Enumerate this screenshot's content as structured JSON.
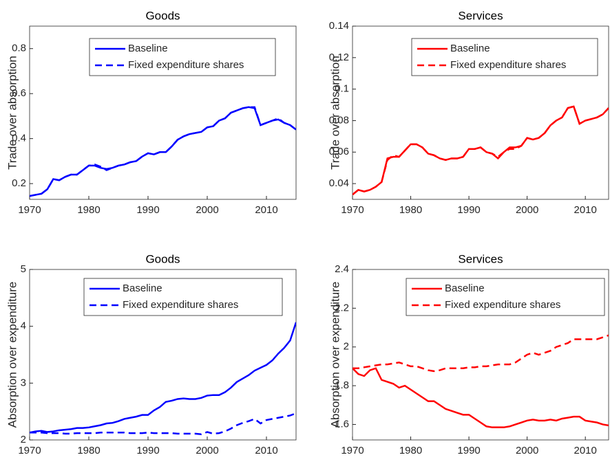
{
  "chart_data": [
    {
      "type": "line",
      "title": "Goods",
      "ylabel": "Trade over absorption",
      "x": [
        1970,
        1971,
        1972,
        1973,
        1974,
        1975,
        1976,
        1977,
        1978,
        1979,
        1980,
        1981,
        1982,
        1983,
        1984,
        1985,
        1986,
        1987,
        1988,
        1989,
        1990,
        1991,
        1992,
        1993,
        1994,
        1995,
        1996,
        1997,
        1998,
        1999,
        2000,
        2001,
        2002,
        2003,
        2004,
        2005,
        2006,
        2007,
        2008,
        2009,
        2010,
        2011,
        2012,
        2013,
        2014,
        2015
      ],
      "xlim": [
        1970,
        2015
      ],
      "xticks": [
        1970,
        1980,
        1990,
        2000,
        2010
      ],
      "ylim": [
        0.13,
        0.9
      ],
      "yticks": [
        0.2,
        0.4,
        0.6,
        0.8
      ],
      "legend": "top",
      "series": [
        {
          "name": "Baseline",
          "color": "#0000ff",
          "style": "solid",
          "values": [
            0.145,
            0.15,
            0.155,
            0.175,
            0.22,
            0.215,
            0.23,
            0.24,
            0.24,
            0.26,
            0.28,
            0.28,
            0.27,
            0.265,
            0.27,
            0.28,
            0.285,
            0.295,
            0.3,
            0.32,
            0.335,
            0.33,
            0.34,
            0.34,
            0.365,
            0.395,
            0.41,
            0.42,
            0.425,
            0.43,
            0.45,
            0.455,
            0.48,
            0.49,
            0.515,
            0.525,
            0.535,
            0.54,
            0.535,
            0.46,
            0.47,
            0.48,
            0.485,
            0.47,
            0.46,
            0.44
          ]
        },
        {
          "name": "Fixed expenditure shares",
          "color": "#0000ff",
          "style": "dashed",
          "values": [
            0.145,
            0.15,
            0.155,
            0.175,
            0.22,
            0.215,
            0.23,
            0.24,
            0.24,
            0.26,
            0.28,
            0.285,
            0.275,
            0.26,
            0.27,
            0.28,
            0.285,
            0.295,
            0.3,
            0.32,
            0.335,
            0.33,
            0.34,
            0.34,
            0.365,
            0.395,
            0.41,
            0.42,
            0.425,
            0.43,
            0.45,
            0.455,
            0.48,
            0.49,
            0.515,
            0.525,
            0.535,
            0.54,
            0.54,
            0.46,
            0.47,
            0.48,
            0.49,
            0.47,
            0.46,
            0.44
          ]
        }
      ]
    },
    {
      "type": "line",
      "title": "Services",
      "ylabel": "Trade over absorption",
      "x": [
        1970,
        1971,
        1972,
        1973,
        1974,
        1975,
        1976,
        1977,
        1978,
        1979,
        1980,
        1981,
        1982,
        1983,
        1984,
        1985,
        1986,
        1987,
        1988,
        1989,
        1990,
        1991,
        1992,
        1993,
        1994,
        1995,
        1996,
        1997,
        1998,
        1999,
        2000,
        2001,
        2002,
        2003,
        2004,
        2005,
        2006,
        2007,
        2008,
        2009,
        2010,
        2011,
        2012,
        2013,
        2014
      ],
      "xlim": [
        1970,
        2014
      ],
      "xticks": [
        1970,
        1980,
        1990,
        2000,
        2010
      ],
      "ylim": [
        0.03,
        0.14
      ],
      "yticks": [
        0.04,
        0.06,
        0.08,
        0.1,
        0.12,
        0.14
      ],
      "legend": "top",
      "series": [
        {
          "name": "Baseline",
          "color": "#ff0000",
          "style": "solid",
          "values": [
            0.033,
            0.036,
            0.035,
            0.036,
            0.038,
            0.041,
            0.056,
            0.057,
            0.057,
            0.061,
            0.065,
            0.065,
            0.063,
            0.059,
            0.058,
            0.056,
            0.055,
            0.056,
            0.056,
            0.057,
            0.062,
            0.062,
            0.063,
            0.06,
            0.059,
            0.056,
            0.06,
            0.063,
            0.063,
            0.064,
            0.069,
            0.068,
            0.069,
            0.072,
            0.077,
            0.08,
            0.082,
            0.088,
            0.089,
            0.078,
            0.08,
            0.081,
            0.082,
            0.084,
            0.088
          ]
        },
        {
          "name": "Fixed expenditure shares",
          "color": "#ff0000",
          "style": "dashed",
          "values": [
            0.033,
            0.036,
            0.035,
            0.036,
            0.038,
            0.041,
            0.055,
            0.058,
            0.057,
            0.061,
            0.065,
            0.065,
            0.063,
            0.059,
            0.058,
            0.056,
            0.055,
            0.056,
            0.056,
            0.057,
            0.062,
            0.062,
            0.063,
            0.06,
            0.059,
            0.057,
            0.06,
            0.062,
            0.062,
            0.064,
            0.069,
            0.068,
            0.069,
            0.072,
            0.077,
            0.08,
            0.082,
            0.088,
            0.089,
            0.078,
            0.08,
            0.081,
            0.082,
            0.084,
            0.088
          ]
        }
      ]
    },
    {
      "type": "line",
      "title": "Goods",
      "ylabel": "Absorption over expenditure",
      "x": [
        1970,
        1971,
        1972,
        1973,
        1974,
        1975,
        1976,
        1977,
        1978,
        1979,
        1980,
        1981,
        1982,
        1983,
        1984,
        1985,
        1986,
        1987,
        1988,
        1989,
        1990,
        1991,
        1992,
        1993,
        1994,
        1995,
        1996,
        1997,
        1998,
        1999,
        2000,
        2001,
        2002,
        2003,
        2004,
        2005,
        2006,
        2007,
        2008,
        2009,
        2010,
        2011,
        2012,
        2013,
        2014,
        2015
      ],
      "xlim": [
        1970,
        2015
      ],
      "xticks": [
        1970,
        1980,
        1990,
        2000,
        2010
      ],
      "ylim": [
        2,
        5
      ],
      "yticks": [
        2,
        3,
        4,
        5
      ],
      "legend": "top",
      "series": [
        {
          "name": "Baseline",
          "color": "#0000ff",
          "style": "solid",
          "values": [
            2.13,
            2.15,
            2.16,
            2.14,
            2.15,
            2.17,
            2.18,
            2.19,
            2.21,
            2.21,
            2.22,
            2.24,
            2.26,
            2.29,
            2.3,
            2.33,
            2.37,
            2.39,
            2.41,
            2.44,
            2.44,
            2.52,
            2.58,
            2.67,
            2.69,
            2.72,
            2.73,
            2.72,
            2.72,
            2.74,
            2.78,
            2.79,
            2.79,
            2.84,
            2.92,
            3.02,
            3.08,
            3.14,
            3.22,
            3.27,
            3.32,
            3.4,
            3.52,
            3.62,
            3.75,
            4.07
          ]
        },
        {
          "name": "Fixed expenditure shares",
          "color": "#0000ff",
          "style": "dashed",
          "values": [
            2.13,
            2.13,
            2.13,
            2.12,
            2.12,
            2.12,
            2.11,
            2.11,
            2.12,
            2.12,
            2.12,
            2.12,
            2.13,
            2.13,
            2.13,
            2.13,
            2.13,
            2.12,
            2.12,
            2.12,
            2.13,
            2.12,
            2.12,
            2.12,
            2.12,
            2.11,
            2.11,
            2.11,
            2.11,
            2.1,
            2.14,
            2.11,
            2.12,
            2.15,
            2.2,
            2.26,
            2.3,
            2.33,
            2.37,
            2.29,
            2.35,
            2.37,
            2.39,
            2.41,
            2.43,
            2.47
          ]
        }
      ]
    },
    {
      "type": "line",
      "title": "Services",
      "ylabel": "Absorption over expenditure",
      "x": [
        1970,
        1971,
        1972,
        1973,
        1974,
        1975,
        1976,
        1977,
        1978,
        1979,
        1980,
        1981,
        1982,
        1983,
        1984,
        1985,
        1986,
        1987,
        1988,
        1989,
        1990,
        1991,
        1992,
        1993,
        1994,
        1995,
        1996,
        1997,
        1998,
        1999,
        2000,
        2001,
        2002,
        2003,
        2004,
        2005,
        2006,
        2007,
        2008,
        2009,
        2010,
        2011,
        2012,
        2013,
        2014
      ],
      "xlim": [
        1970,
        2014
      ],
      "xticks": [
        1970,
        1980,
        1990,
        2000,
        2010
      ],
      "ylim": [
        1.52,
        2.4
      ],
      "yticks": [
        1.6,
        1.8,
        2,
        2.2,
        2.4
      ],
      "legend": "top",
      "series": [
        {
          "name": "Baseline",
          "color": "#ff0000",
          "style": "solid",
          "values": [
            1.89,
            1.86,
            1.85,
            1.88,
            1.89,
            1.83,
            1.82,
            1.81,
            1.79,
            1.8,
            1.78,
            1.76,
            1.74,
            1.72,
            1.72,
            1.7,
            1.68,
            1.67,
            1.66,
            1.65,
            1.65,
            1.63,
            1.61,
            1.59,
            1.585,
            1.585,
            1.585,
            1.59,
            1.6,
            1.61,
            1.62,
            1.625,
            1.62,
            1.62,
            1.625,
            1.62,
            1.63,
            1.635,
            1.64,
            1.64,
            1.62,
            1.615,
            1.61,
            1.6,
            1.595
          ]
        },
        {
          "name": "Fixed expenditure shares",
          "color": "#ff0000",
          "style": "dashed",
          "values": [
            1.89,
            1.89,
            1.895,
            1.9,
            1.905,
            1.91,
            1.91,
            1.915,
            1.92,
            1.91,
            1.9,
            1.9,
            1.89,
            1.88,
            1.875,
            1.88,
            1.89,
            1.89,
            1.89,
            1.89,
            1.895,
            1.895,
            1.9,
            1.9,
            1.905,
            1.91,
            1.91,
            1.91,
            1.92,
            1.94,
            1.96,
            1.97,
            1.96,
            1.97,
            1.98,
            2.0,
            2.01,
            2.02,
            2.04,
            2.04,
            2.04,
            2.04,
            2.04,
            2.05,
            2.06
          ]
        }
      ]
    }
  ]
}
